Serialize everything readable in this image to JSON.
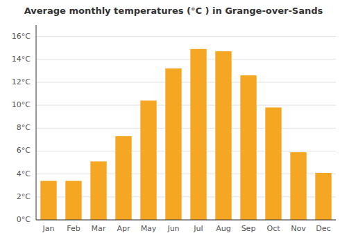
{
  "chart_data": {
    "type": "bar",
    "title": "Average monthly temperatures (°C ) in Grange-over-Sands",
    "categories": [
      "Jan",
      "Feb",
      "Mar",
      "Apr",
      "May",
      "Jun",
      "Jul",
      "Aug",
      "Sep",
      "Oct",
      "Nov",
      "Dec"
    ],
    "values": [
      3.4,
      3.4,
      5.1,
      7.3,
      10.4,
      13.2,
      14.9,
      14.7,
      12.6,
      9.8,
      5.9,
      4.1
    ],
    "color": "#F5A623",
    "ylim": [
      0,
      17
    ],
    "yticks": [
      {
        "value": 0,
        "label": "0°C"
      },
      {
        "value": 2,
        "label": "2°C"
      },
      {
        "value": 4,
        "label": "4°C"
      },
      {
        "value": 6,
        "label": "6°C"
      },
      {
        "value": 8,
        "label": "8°C"
      },
      {
        "value": 10,
        "label": "10°C"
      },
      {
        "value": 12,
        "label": "12°C"
      },
      {
        "value": 14,
        "label": "14°C"
      },
      {
        "value": 16,
        "label": "16°C"
      }
    ],
    "grid": true
  }
}
